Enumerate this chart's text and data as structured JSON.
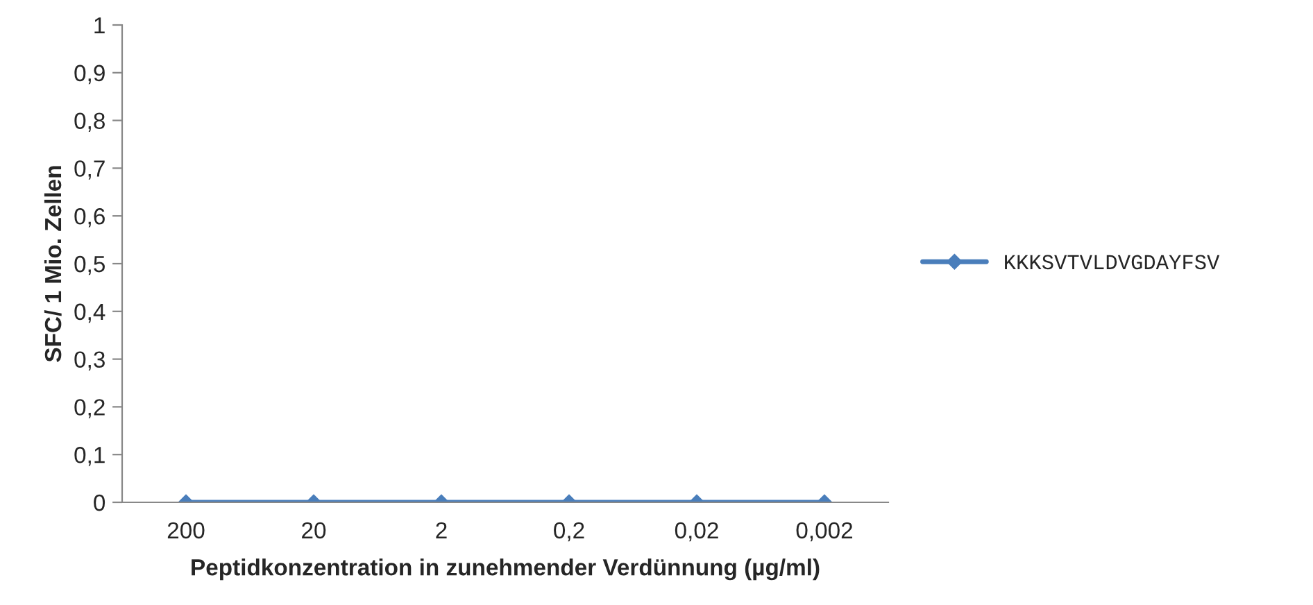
{
  "chart_data": {
    "type": "line",
    "xlabel": "Peptidkonzentration in zunehmender Verdünnung (µg/ml)",
    "ylabel": "SFC/ 1 Mio. Zellen",
    "categories": [
      "200",
      "20",
      "2",
      "0,2",
      "0,02",
      "0,002"
    ],
    "series": [
      {
        "name": "KKKSVTVLDVGDAYFSV",
        "color": "#4a7ebb",
        "values": [
          0,
          0,
          0,
          0,
          0,
          0
        ]
      }
    ],
    "ylim": [
      0,
      1
    ],
    "yticks": [
      0,
      {
        "value": 0.1,
        "label": "0,1"
      },
      {
        "value": 0.2,
        "label": "0,2"
      },
      {
        "value": 0.3,
        "label": "0,3"
      },
      {
        "value": 0.4,
        "label": "0,4"
      },
      {
        "value": 0.5,
        "label": "0,5"
      },
      {
        "value": 0.6,
        "label": "0,6"
      },
      {
        "value": 0.7,
        "label": "0,7"
      },
      {
        "value": 0.8,
        "label": "0,8"
      },
      {
        "value": 0.9,
        "label": "0,9"
      },
      1
    ],
    "grid": false,
    "legend": "right",
    "marker": "diamond",
    "line_style": "solid"
  }
}
